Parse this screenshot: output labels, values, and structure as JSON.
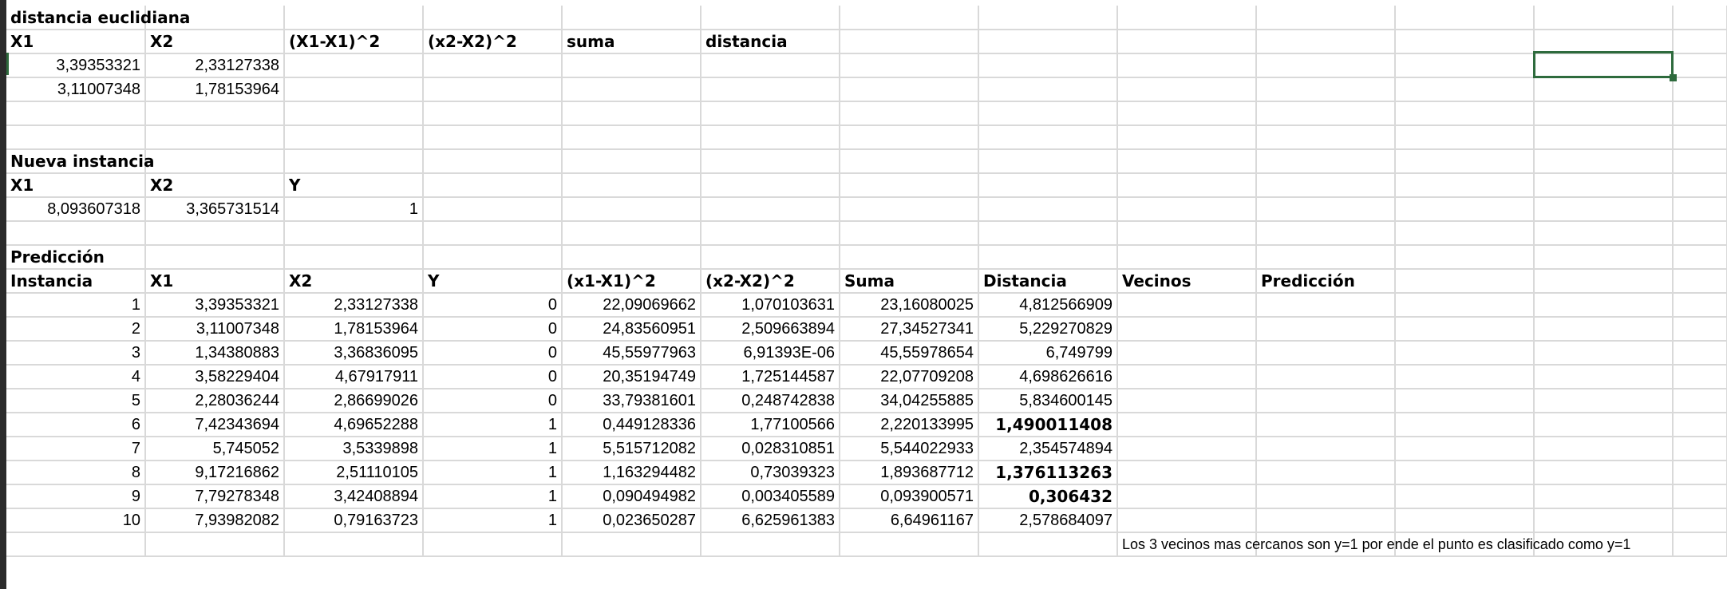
{
  "sections": {
    "euclid_title": "distancia euclidiana",
    "new_title": "Nueva instancia",
    "pred_title": "Predicción"
  },
  "euclid_headers": [
    "X1",
    "X2",
    "(X1-X1)^2",
    "(x2-X2)^2",
    "suma",
    "distancia"
  ],
  "euclid_rows": [
    [
      "3,39353321",
      "2,33127338"
    ],
    [
      "3,11007348",
      "1,78153964"
    ]
  ],
  "new_headers": [
    "X1",
    "X2",
    "Y"
  ],
  "new_row": [
    "8,093607318",
    "3,365731514",
    "1"
  ],
  "pred_headers": [
    "Instancia",
    "X1",
    "X2",
    "Y",
    "(x1-X1)^2",
    "(x2-X2)^2",
    "Suma",
    "Distancia",
    "Vecinos",
    "Predicción"
  ],
  "pred_rows": [
    [
      "1",
      "3,39353321",
      "2,33127338",
      "0",
      "22,09069662",
      "1,070103631",
      "23,16080025",
      "4,812566909"
    ],
    [
      "2",
      "3,11007348",
      "1,78153964",
      "0",
      "24,83560951",
      "2,509663894",
      "27,34527341",
      "5,229270829"
    ],
    [
      "3",
      "1,34380883",
      "3,36836095",
      "0",
      "45,55977963",
      "6,91393E-06",
      "45,55978654",
      "6,749799"
    ],
    [
      "4",
      "3,58229404",
      "4,67917911",
      "0",
      "20,35194749",
      "1,725144587",
      "22,07709208",
      "4,698626616"
    ],
    [
      "5",
      "2,28036244",
      "2,86699026",
      "0",
      "33,79381601",
      "0,248742838",
      "34,04255885",
      "5,834600145"
    ],
    [
      "6",
      "7,42343694",
      "4,69652288",
      "1",
      "0,449128336",
      "1,77100566",
      "2,220133995",
      "1,490011408"
    ],
    [
      "7",
      "5,745052",
      "3,5339898",
      "1",
      "5,515712082",
      "0,028310851",
      "5,544022933",
      "2,354574894"
    ],
    [
      "8",
      "9,17216862",
      "2,51110105",
      "1",
      "1,163294482",
      "0,73039323",
      "1,893687712",
      "1,376113263"
    ],
    [
      "9",
      "7,79278348",
      "3,42408894",
      "1",
      "0,090494982",
      "0,003405589",
      "0,093900571",
      "0,306432"
    ],
    [
      "10",
      "7,93982082",
      "0,79163723",
      "1",
      "0,023650287",
      "6,625961383",
      "6,64961167",
      "2,578684097"
    ]
  ],
  "bold_distances": [
    5,
    7,
    8
  ],
  "note": "Los 3 vecinos mas cercanos son y=1 por ende el punto es clasificado como y=1",
  "colors": {
    "gridline": "#d9d9d9",
    "selection": "#2e6b3d"
  }
}
